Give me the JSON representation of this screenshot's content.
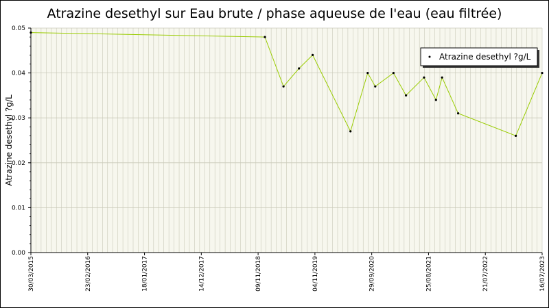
{
  "chart_data": {
    "type": "line",
    "title": "Atrazine desethyl sur Eau brute / phase aqueuse de l'eau (eau filtrée)",
    "ylabel": "Atrazine desethyl ?g/L",
    "xlabel": "",
    "ylim": [
      0,
      0.05
    ],
    "yticks": [
      "0.00",
      "0.01",
      "0.02",
      "0.03",
      "0.04",
      "0.05"
    ],
    "xlim": [
      "2015-03-30",
      "2023-07-16"
    ],
    "xticks": [
      "30/03/2015",
      "23/02/2016",
      "18/01/2017",
      "14/12/2017",
      "09/11/2018",
      "04/11/2019",
      "29/09/2020",
      "25/08/2021",
      "21/07/2022",
      "16/07/2023"
    ],
    "grid": true,
    "legend_position": "top-right",
    "series": [
      {
        "name": "Atrazine desethyl ?g/L",
        "color": "#99cc00",
        "points": [
          {
            "x": "2015-03-30",
            "y": 0.049
          },
          {
            "x": "2019-01-15",
            "y": 0.048
          },
          {
            "x": "2019-05-05",
            "y": 0.037
          },
          {
            "x": "2019-08-05",
            "y": 0.041
          },
          {
            "x": "2019-10-25",
            "y": 0.044
          },
          {
            "x": "2020-06-05",
            "y": 0.027
          },
          {
            "x": "2020-09-15",
            "y": 0.04
          },
          {
            "x": "2020-10-30",
            "y": 0.037
          },
          {
            "x": "2021-02-15",
            "y": 0.04
          },
          {
            "x": "2021-04-30",
            "y": 0.035
          },
          {
            "x": "2021-08-15",
            "y": 0.039
          },
          {
            "x": "2021-10-25",
            "y": 0.034
          },
          {
            "x": "2021-11-30",
            "y": 0.039
          },
          {
            "x": "2022-03-05",
            "y": 0.031
          },
          {
            "x": "2023-02-10",
            "y": 0.026
          },
          {
            "x": "2023-07-16",
            "y": 0.04
          }
        ]
      }
    ]
  }
}
